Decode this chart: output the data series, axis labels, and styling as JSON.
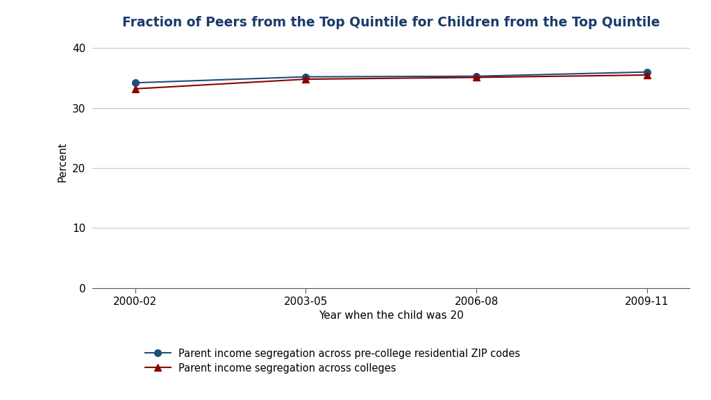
{
  "title": "Fraction of Peers from the Top Quintile for Children from the Top Quintile",
  "xlabel": "Year when the child was 20",
  "ylabel": "Percent",
  "x_labels": [
    "2000-02",
    "2003-05",
    "2006-08",
    "2009-11"
  ],
  "x_values": [
    0,
    1,
    2,
    3
  ],
  "series1_label": "Parent income segregation across pre-college residential ZIP codes",
  "series1_color": "#1f4e79",
  "series1_values": [
    34.2,
    35.2,
    35.3,
    36.0
  ],
  "series1_marker": "o",
  "series2_label": "Parent income segregation across colleges",
  "series2_color": "#8b0000",
  "series2_values": [
    33.2,
    34.8,
    35.1,
    35.5
  ],
  "series2_marker": "^",
  "ylim": [
    0,
    42
  ],
  "yticks": [
    0,
    10,
    20,
    30,
    40
  ],
  "background_color": "#ffffff",
  "title_color": "#1a3a6b",
  "title_fontsize": 13.5,
  "axis_fontsize": 11,
  "legend_fontsize": 10.5,
  "line_width": 1.5,
  "marker_size": 7,
  "grid_color": "#c8c8c8",
  "spine_color": "#555555"
}
